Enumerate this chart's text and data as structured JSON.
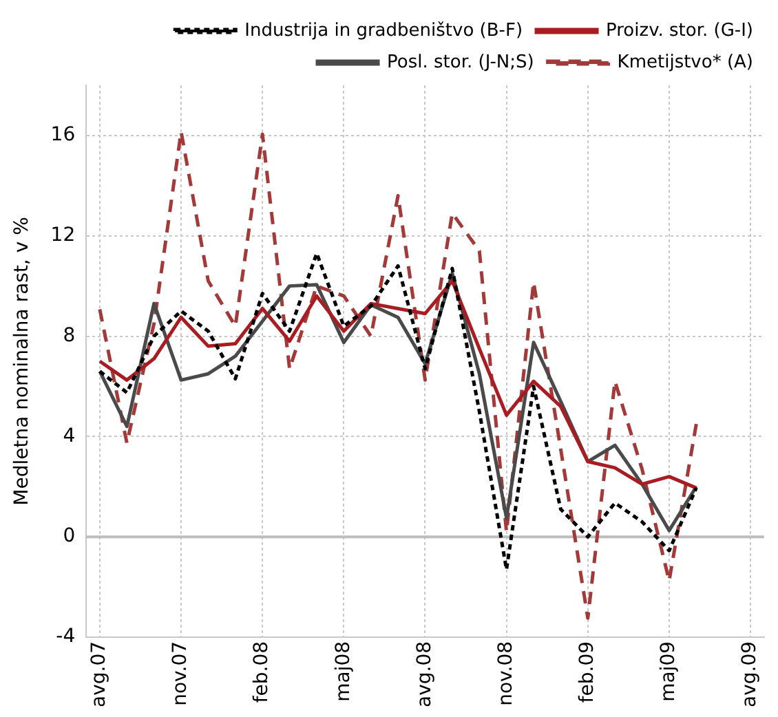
{
  "chart_data": {
    "type": "line",
    "ylabel": "Medletna nominalna rast, v %",
    "categories": [
      "avg.07",
      null,
      null,
      "nov.07",
      null,
      null,
      "feb.08",
      null,
      null,
      "maj08",
      null,
      null,
      "avg.08",
      null,
      null,
      "nov.08",
      null,
      null,
      "feb.09",
      null,
      null,
      "maj09",
      null,
      null,
      "avg.09"
    ],
    "series": [
      {
        "name": "Industrija in gradbeništvo (B-F)",
        "color": "#000000",
        "line_style": "dotted",
        "values": [
          6.6,
          5.75,
          8.0,
          9.0,
          8.2,
          6.3,
          9.7,
          8.2,
          11.3,
          8.4,
          9.2,
          10.8,
          6.7,
          10.7,
          5.0,
          -1.3,
          6.0,
          1.1,
          0.0,
          1.35,
          0.6,
          -0.55,
          1.95,
          null,
          null
        ]
      },
      {
        "name": "Proizv. stor. (G-I)",
        "color": "#a81c22",
        "line_style": "solid",
        "values": [
          7.0,
          6.25,
          7.1,
          8.75,
          7.6,
          7.7,
          9.1,
          7.8,
          9.6,
          8.2,
          9.3,
          9.1,
          8.9,
          10.2,
          7.5,
          4.85,
          6.2,
          5.2,
          3.0,
          2.75,
          2.1,
          2.4,
          1.95,
          null,
          null
        ]
      },
      {
        "name": "Posl. stor. (J-N;S)",
        "color": "#4a4a4a",
        "line_style": "solid",
        "values": [
          6.6,
          4.4,
          9.3,
          6.25,
          6.5,
          7.2,
          8.6,
          10.0,
          10.05,
          7.75,
          9.25,
          8.75,
          6.9,
          10.5,
          6.5,
          0.75,
          7.75,
          5.4,
          3.0,
          3.65,
          2.1,
          0.25,
          2.0,
          null,
          null
        ]
      },
      {
        "name": "Kmetijstvo* (A)",
        "color": "#a33a3a",
        "line_style": "dashed",
        "values": [
          9.07,
          3.74,
          8.5,
          16.15,
          10.2,
          8.4,
          16.05,
          6.7,
          10.0,
          9.6,
          8.0,
          13.6,
          6.25,
          12.9,
          11.4,
          0.2,
          10.15,
          3.5,
          -3.24,
          6.2,
          2.7,
          -1.75,
          4.5,
          null,
          null
        ]
      }
    ],
    "ylim": [
      -4,
      18
    ],
    "yticks": [
      -4,
      0,
      4,
      8,
      12,
      16
    ],
    "ref_lines": [
      {
        "axis": "y",
        "value": 0,
        "color": "#bdbdbd"
      }
    ],
    "grid": true,
    "legend": "top right",
    "marker": "none"
  }
}
